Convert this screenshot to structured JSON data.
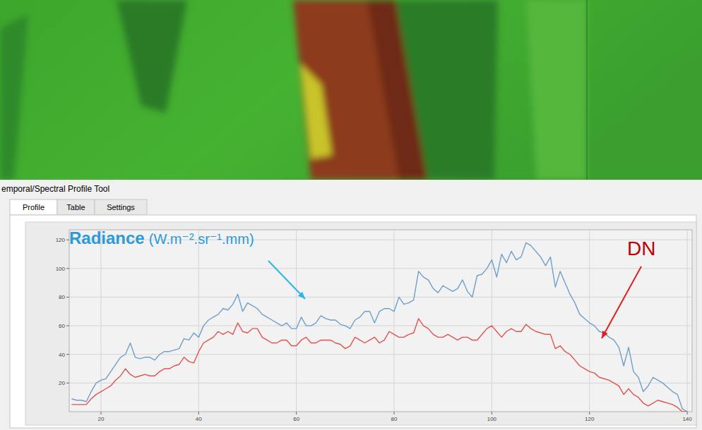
{
  "window": {
    "title": "emporal/Spectral Profile Tool",
    "tabs": [
      "Profile",
      "Table",
      "Settings"
    ]
  },
  "chart_data": {
    "type": "line",
    "annotations": [
      "(W.m⁻².sr⁻¹.mm)"
    ],
    "x": [
      14,
      15,
      16,
      17,
      18,
      19,
      20,
      21,
      22,
      23,
      24,
      25,
      26,
      27,
      28,
      29,
      30,
      31,
      32,
      33,
      34,
      35,
      36,
      37,
      38,
      39,
      40,
      41,
      42,
      43,
      44,
      45,
      46,
      47,
      48,
      49,
      50,
      51,
      52,
      53,
      54,
      55,
      56,
      57,
      58,
      59,
      60,
      61,
      62,
      63,
      64,
      65,
      66,
      67,
      68,
      69,
      70,
      71,
      72,
      73,
      74,
      75,
      76,
      77,
      78,
      79,
      80,
      81,
      82,
      83,
      84,
      85,
      86,
      87,
      88,
      89,
      90,
      91,
      92,
      93,
      94,
      95,
      96,
      97,
      98,
      99,
      100,
      101,
      102,
      103,
      104,
      105,
      106,
      107,
      108,
      109,
      110,
      111,
      112,
      113,
      114,
      115,
      116,
      117,
      118,
      119,
      120,
      121,
      122,
      123,
      124,
      125,
      126,
      127,
      128,
      129,
      130,
      131,
      132,
      133,
      134,
      135,
      136,
      137,
      138,
      139,
      140
    ],
    "series": [
      {
        "name": "Radiance",
        "color": "#6f9fca",
        "values": [
          9,
          8,
          8,
          7,
          14,
          20,
          22,
          23,
          28,
          33,
          38,
          40,
          48,
          38,
          37,
          38,
          38,
          36,
          40,
          42,
          42,
          43,
          44,
          51,
          50,
          55,
          52,
          60,
          64,
          66,
          68,
          72,
          71,
          75,
          82,
          70,
          76,
          74,
          72,
          68,
          66,
          64,
          62,
          60,
          62,
          58,
          58,
          66,
          60,
          60,
          62,
          67,
          65,
          64,
          64,
          61,
          60,
          58,
          64,
          66,
          70,
          70,
          62,
          70,
          72,
          72,
          70,
          80,
          75,
          76,
          78,
          98,
          94,
          92,
          86,
          83,
          88,
          86,
          84,
          86,
          92,
          84,
          80,
          95,
          96,
          100,
          106,
          94,
          110,
          104,
          112,
          106,
          108,
          118,
          116,
          112,
          108,
          102,
          108,
          87,
          98,
          90,
          82,
          76,
          68,
          65,
          62,
          60,
          56,
          55,
          52,
          50,
          45,
          32,
          45,
          28,
          24,
          14,
          18,
          24,
          22,
          20,
          17,
          14,
          12,
          2,
          0
        ]
      },
      {
        "name": "DN",
        "color": "#e2524e",
        "values": [
          5,
          5,
          5,
          5,
          9,
          12,
          14,
          16,
          18,
          22,
          25,
          30,
          26,
          24,
          25,
          26,
          25,
          25,
          28,
          30,
          30,
          32,
          33,
          38,
          35,
          34,
          42,
          48,
          50,
          52,
          56,
          54,
          56,
          54,
          62,
          56,
          55,
          58,
          58,
          52,
          50,
          48,
          48,
          50,
          50,
          46,
          46,
          50,
          52,
          48,
          48,
          50,
          50,
          50,
          48,
          47,
          44,
          46,
          52,
          50,
          48,
          50,
          52,
          48,
          50,
          56,
          54,
          52,
          52,
          54,
          55,
          65,
          60,
          58,
          54,
          52,
          52,
          54,
          52,
          50,
          52,
          52,
          50,
          50,
          54,
          58,
          60,
          56,
          52,
          56,
          58,
          56,
          56,
          61,
          58,
          56,
          55,
          54,
          54,
          44,
          46,
          42,
          40,
          36,
          32,
          30,
          28,
          27,
          24,
          23,
          22,
          20,
          18,
          12,
          16,
          12,
          10,
          6,
          4,
          6,
          8,
          7,
          6,
          5,
          3,
          0,
          0
        ]
      }
    ],
    "xlim": [
      13.5,
      141
    ],
    "xticks": [
      20,
      40,
      60,
      80,
      100,
      120,
      140
    ],
    "ylim": [
      0,
      127
    ],
    "yticks": [
      20,
      40,
      60,
      80,
      100,
      120
    ],
    "grid": true
  }
}
